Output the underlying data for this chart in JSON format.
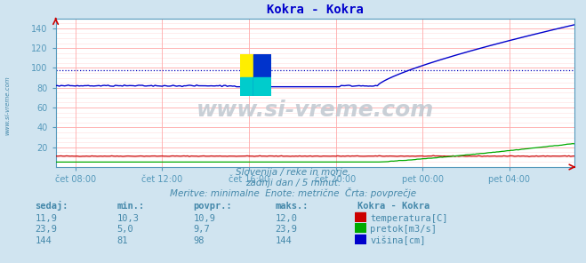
{
  "title": "Kokra - Kokra",
  "title_color": "#0000cc",
  "bg_color": "#d0e4f0",
  "plot_bg_color": "#ffffff",
  "grid_color": "#ffaaaa",
  "axis_label_color": "#5599bb",
  "text_color": "#4488aa",
  "watermark": "www.si-vreme.com",
  "subtitle1": "Slovenija / reke in morje.",
  "subtitle2": "zadnji dan / 5 minut.",
  "subtitle3": "Meritve: minimalne  Enote: metrične  Črta: povprečje",
  "xlabel_ticks": [
    "čet 08:00",
    "čet 12:00",
    "čet 16:00",
    "čet 20:00",
    "pet 00:00",
    "pet 04:00"
  ],
  "ylim": [
    0,
    150
  ],
  "yticks": [
    20,
    40,
    60,
    80,
    100,
    120,
    140
  ],
  "num_points": 288,
  "temp_color": "#cc0000",
  "pretok_color": "#00aa00",
  "visina_color": "#0000cc",
  "avg_line_color": "#0000bb",
  "visina_avg": 98,
  "table_headers": [
    "sedaj:",
    "min.:",
    "povpr.:",
    "maks.:"
  ],
  "table_col_header": "Kokra - Kokra",
  "table_rows": [
    {
      "sedaj": "11,9",
      "min": "10,3",
      "povpr": "10,9",
      "maks": "12,0",
      "label": "temperatura[C]",
      "color": "#cc0000"
    },
    {
      "sedaj": "23,9",
      "min": "5,0",
      "povpr": "9,7",
      "maks": "23,9",
      "label": "pretok[m3/s]",
      "color": "#00aa00"
    },
    {
      "sedaj": "144",
      "min": "81",
      "povpr": "98",
      "maks": "144",
      "label": "višina[cm]",
      "color": "#0000cc"
    }
  ]
}
